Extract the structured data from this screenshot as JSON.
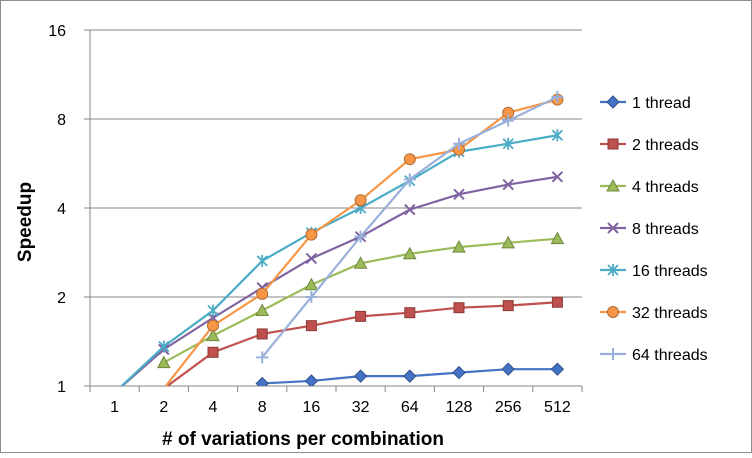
{
  "chart_data": {
    "type": "line",
    "title": "",
    "xlabel": "# of variations per combination",
    "ylabel": "Speedup",
    "yscale": "log2",
    "ylim": [
      1,
      16
    ],
    "yticks": [
      "1",
      "2",
      "4",
      "8",
      "16"
    ],
    "categories": [
      "1",
      "2",
      "4",
      "8",
      "16",
      "32",
      "64",
      "128",
      "256",
      "512"
    ],
    "grid": "horizontal",
    "legend": "right",
    "series": [
      {
        "name": "1 thread",
        "color": "#4472C4",
        "marker": "diamond",
        "values": [
          null,
          null,
          null,
          1.02,
          1.04,
          1.08,
          1.08,
          1.11,
          1.14,
          1.14
        ]
      },
      {
        "name": "2 threads",
        "color": "#C0504D",
        "marker": "square",
        "values": [
          null,
          0.98,
          1.3,
          1.5,
          1.6,
          1.72,
          1.77,
          1.84,
          1.87,
          1.92
        ]
      },
      {
        "name": "4 threads",
        "color": "#9BBB59",
        "marker": "triangle",
        "values": [
          null,
          1.2,
          1.48,
          1.8,
          2.2,
          2.6,
          2.8,
          2.95,
          3.05,
          3.15
        ]
      },
      {
        "name": "8 threads",
        "color": "#8064A2",
        "marker": "x",
        "values": [
          0.95,
          1.33,
          1.7,
          2.15,
          2.7,
          3.2,
          3.95,
          4.45,
          4.8,
          5.1
        ]
      },
      {
        "name": "16 threads",
        "color": "#4BACC6",
        "marker": "star",
        "values": [
          0.95,
          1.36,
          1.8,
          2.65,
          3.3,
          4.0,
          4.95,
          6.2,
          6.6,
          7.05
        ]
      },
      {
        "name": "32 threads",
        "color": "#F79646",
        "marker": "circle",
        "values": [
          null,
          0.98,
          1.6,
          2.05,
          3.25,
          4.25,
          5.85,
          6.3,
          8.4,
          9.3
        ]
      },
      {
        "name": "64 threads",
        "color": "#9AB0DA",
        "marker": "plus",
        "values": [
          null,
          null,
          null,
          1.25,
          2.0,
          3.2,
          5.0,
          6.6,
          7.9,
          9.5
        ]
      }
    ]
  }
}
